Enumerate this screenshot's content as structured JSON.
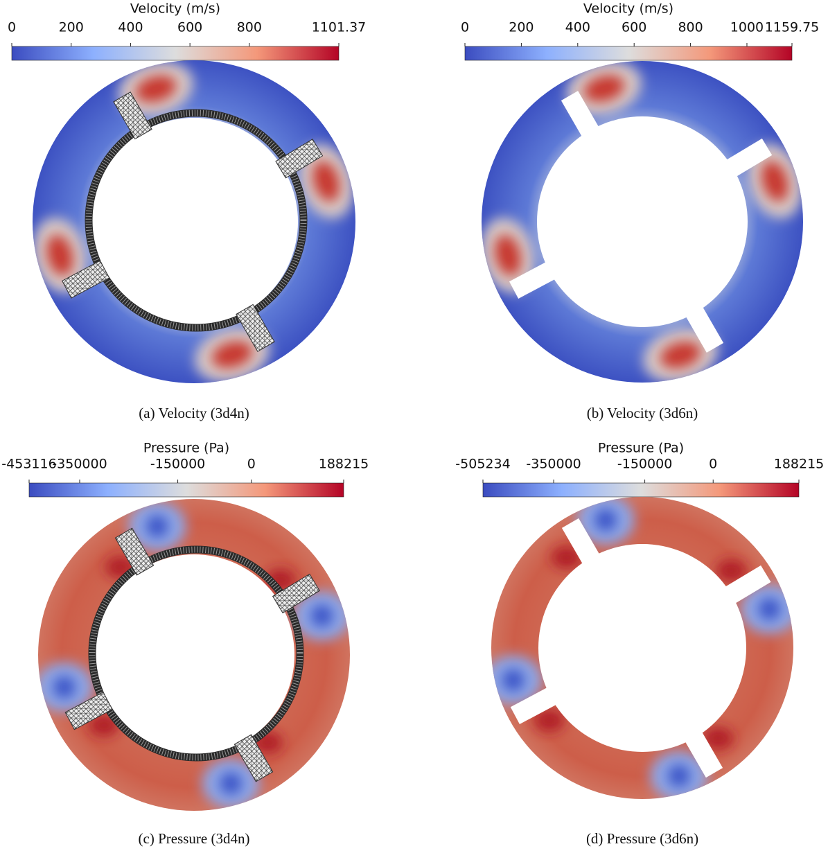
{
  "panels": [
    {
      "title": "Velocity (m/s)",
      "range": [
        0,
        1101.37
      ],
      "ticks": [
        0,
        200,
        400,
        600,
        800,
        1101.37
      ],
      "caption": "(a) Velocity (3d4n)"
    },
    {
      "title": "Velocity (m/s)",
      "range": [
        0,
        1159.75
      ],
      "ticks": [
        0,
        200,
        400,
        600,
        800,
        1000,
        1159.75
      ],
      "caption": "(b) Velocity (3d6n)"
    },
    {
      "title": "Pressure (Pa)",
      "range": [
        -453116,
        188215
      ],
      "ticks": [
        -453116,
        -350000,
        -150000,
        0,
        188215
      ],
      "caption": "(c) Pressure (3d4n)"
    },
    {
      "title": "Pressure (Pa)",
      "range": [
        -505234,
        188215
      ],
      "ticks": [
        -505234,
        -350000,
        -150000,
        0,
        188215
      ],
      "caption": "(d) Pressure (3d6n)"
    }
  ]
}
